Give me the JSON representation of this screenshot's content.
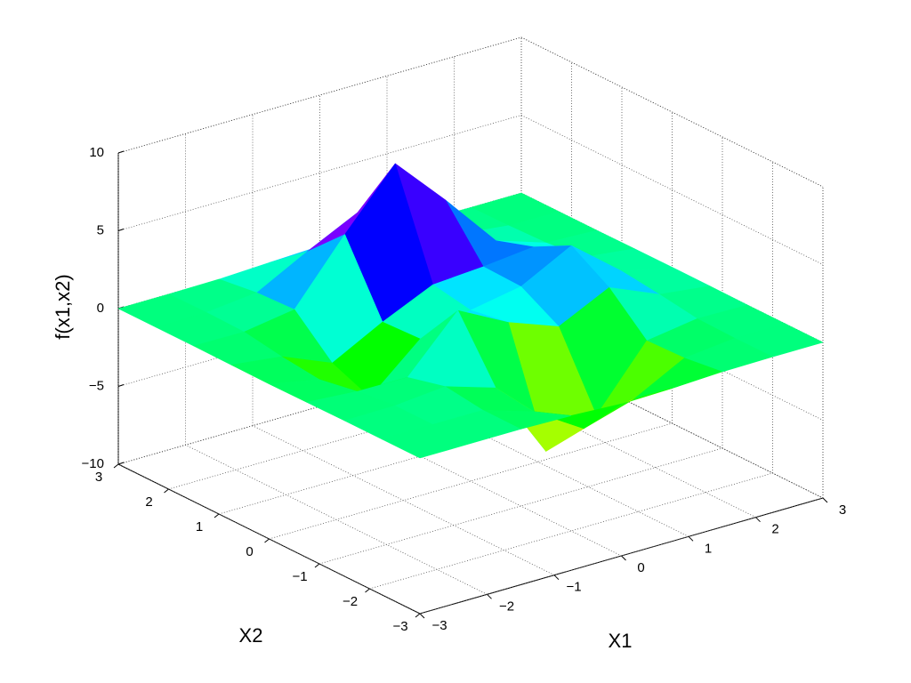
{
  "chart_data": {
    "type": "surface",
    "xlabel": "X1",
    "ylabel": "X2",
    "zlabel": "f(x1,x2)",
    "x1": [
      -3,
      -2.25,
      -1.5,
      -0.75,
      0,
      0.75,
      1.5,
      2.25,
      3
    ],
    "x2": [
      -3,
      -2.25,
      -1.5,
      -0.75,
      0,
      0.75,
      1.5,
      2.25,
      3
    ],
    "z": [
      [
        0,
        0,
        0,
        -0.07,
        -0.24,
        -0.17,
        -0.03,
        0,
        0
      ],
      [
        0,
        0.02,
        0.01,
        -1.0,
        -3.02,
        -2.05,
        -0.35,
        -0.01,
        0
      ],
      [
        0,
        0.03,
        0.33,
        -0.68,
        -5.68,
        -4.32,
        -0.44,
        0.05,
        0
      ],
      [
        -0.02,
        -0.25,
        -0.28,
        3.09,
        1.4,
        0.2,
        1.78,
        0.41,
        0.02
      ],
      [
        -0.04,
        -0.69,
        -2.77,
        0.06,
        0.98,
        1.57,
        3.27,
        0.7,
        0.03
      ],
      [
        -0.02,
        -0.42,
        -1.76,
        -0.05,
        1.42,
        1.65,
        1.99,
        0.4,
        0.02
      ],
      [
        0,
        -0.03,
        0.48,
        4.38,
        8.0,
        4.72,
        1.19,
        0.12,
        0
      ],
      [
        0,
        0.02,
        0.36,
        2.07,
        3.65,
        2.09,
        0.41,
        0.03,
        0
      ],
      [
        0,
        0,
        0.03,
        0.17,
        0.3,
        0.17,
        0.03,
        0,
        0
      ]
    ],
    "xlim": [
      -3,
      3
    ],
    "ylim": [
      -3,
      3
    ],
    "zlim": [
      -10,
      10
    ],
    "xticks": [
      {
        "value": -3,
        "label": "−3"
      },
      {
        "value": -2,
        "label": "−2"
      },
      {
        "value": -1,
        "label": "−1"
      },
      0,
      1,
      2,
      3
    ],
    "yticks": [
      {
        "value": -3,
        "label": "−3"
      },
      {
        "value": -2,
        "label": "−2"
      },
      {
        "value": -1,
        "label": "−1"
      },
      0,
      1,
      2,
      3
    ],
    "zticks": [
      {
        "value": -10,
        "label": "−10"
      },
      {
        "value": -5,
        "label": "−5"
      },
      0,
      5,
      10
    ],
    "grid": true,
    "colormap": "hsv"
  }
}
